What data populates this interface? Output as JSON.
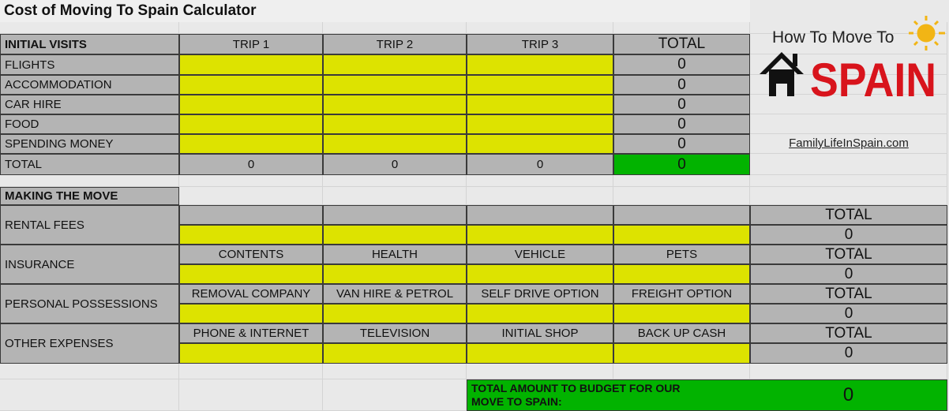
{
  "title": "Cost of Moving To Spain Calculator",
  "logo": {
    "line1": "How To Move To",
    "line2": "SPAIN",
    "brand_color": "#d8141c",
    "sun_color": "#f2b515"
  },
  "website": "FamilyLifeInSpain.com",
  "colors": {
    "input": "#dde300",
    "header": "#b4b4b4",
    "total": "#02b300"
  },
  "initial_visits": {
    "heading": "INITIAL VISITS",
    "columns": [
      "TRIP 1",
      "TRIP 2",
      "TRIP 3",
      "TOTAL"
    ],
    "rows": [
      {
        "label": "FLIGHTS",
        "total": "0"
      },
      {
        "label": "ACCOMMODATION",
        "total": "0"
      },
      {
        "label": "CAR HIRE",
        "total": "0"
      },
      {
        "label": "FOOD",
        "total": "0"
      },
      {
        "label": "SPENDING MONEY",
        "total": "0"
      }
    ],
    "total_row": {
      "label": "TOTAL",
      "values": [
        "0",
        "0",
        "0",
        "0"
      ]
    }
  },
  "making_the_move": {
    "heading": "MAKING THE MOVE",
    "sections": [
      {
        "label": "RENTAL FEES",
        "columns": [
          "",
          "",
          "",
          ""
        ],
        "total_label": "TOTAL",
        "total": "0"
      },
      {
        "label": "INSURANCE",
        "columns": [
          "CONTENTS",
          "HEALTH",
          "VEHICLE",
          "PETS"
        ],
        "total_label": "TOTAL",
        "total": "0"
      },
      {
        "label": "PERSONAL POSSESSIONS",
        "columns": [
          "REMOVAL COMPANY",
          "VAN HIRE & PETROL",
          "SELF DRIVE OPTION",
          "FREIGHT OPTION"
        ],
        "total_label": "TOTAL",
        "total": "0"
      },
      {
        "label": "OTHER EXPENSES",
        "columns": [
          "PHONE & INTERNET",
          "TELEVISION",
          "INITIAL SHOP",
          "BACK UP CASH"
        ],
        "total_label": "TOTAL",
        "total": "0"
      }
    ]
  },
  "grand_total": {
    "label": "TOTAL AMOUNT TO BUDGET FOR OUR MOVE TO SPAIN:",
    "value": "0"
  }
}
